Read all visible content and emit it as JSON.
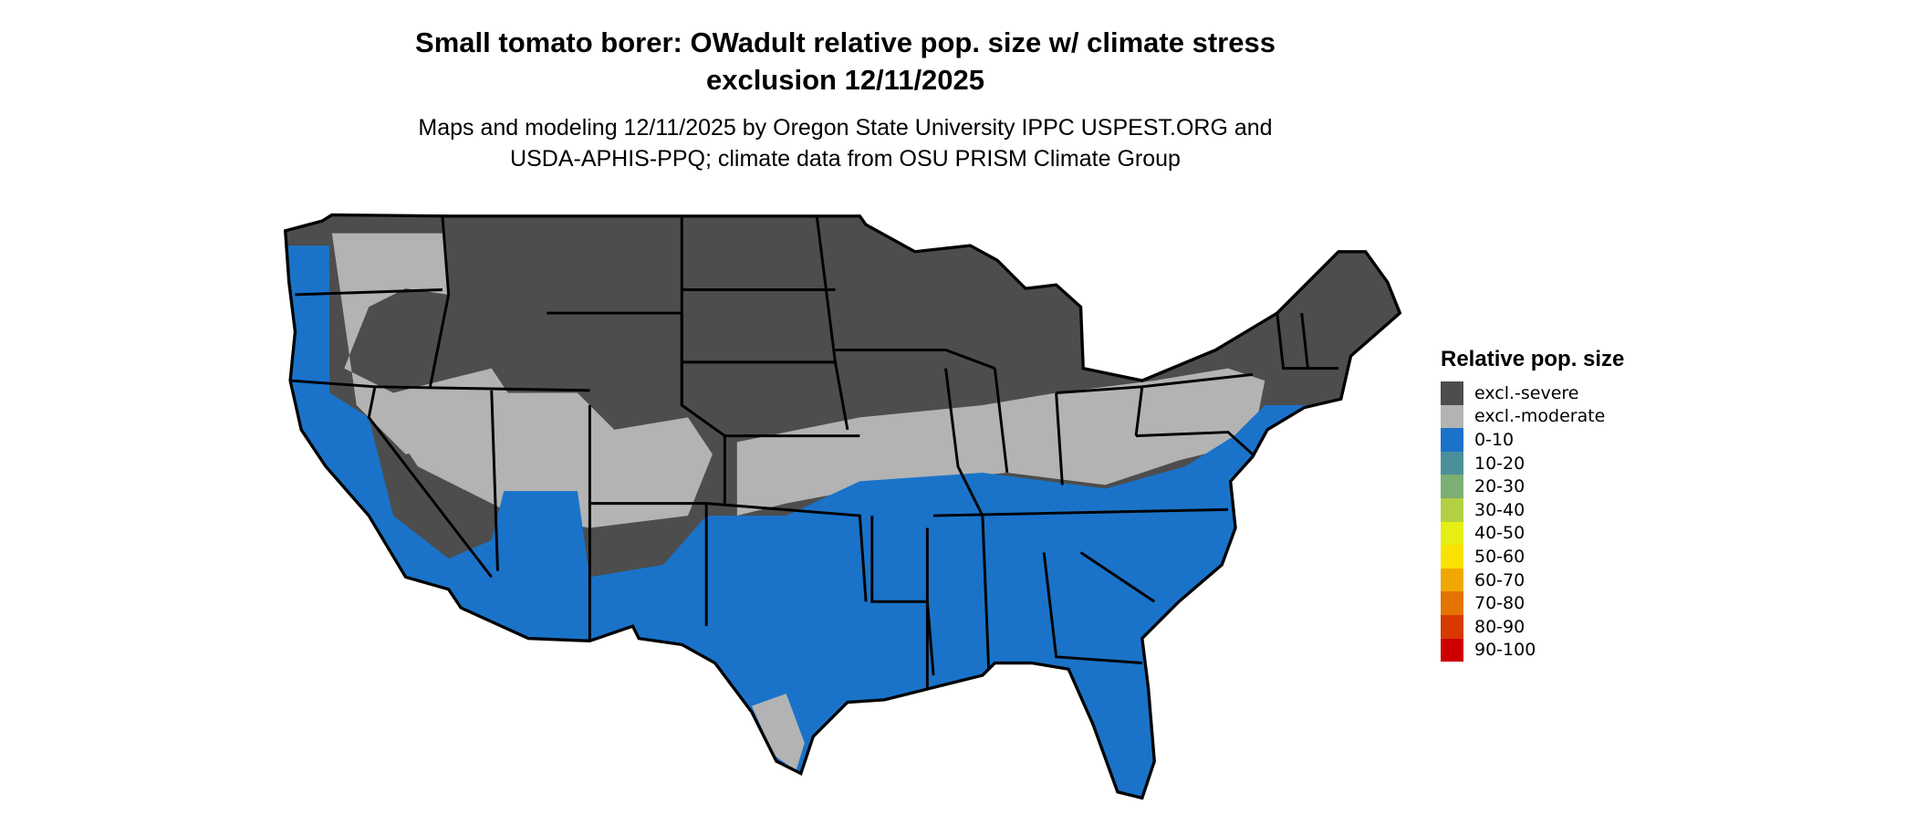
{
  "title_line1": "Small tomato borer: OWadult relative pop. size w/ climate stress",
  "title_line2": "exclusion 12/11/2025",
  "subtitle_line1": "Maps and modeling 12/11/2025 by Oregon State University IPPC USPEST.ORG and",
  "subtitle_line2": "USDA-APHIS-PPQ; climate data from OSU PRISM Climate Group",
  "legend": {
    "title": "Relative pop. size",
    "items": [
      {
        "label": "excl.-severe",
        "color": "#4d4d4d"
      },
      {
        "label": "excl.-moderate",
        "color": "#b3b3b3"
      },
      {
        "label": "0-10",
        "color": "#1a73c9"
      },
      {
        "label": "10-20",
        "color": "#4a909b"
      },
      {
        "label": "20-30",
        "color": "#7daf72"
      },
      {
        "label": "30-40",
        "color": "#b3d042"
      },
      {
        "label": "40-50",
        "color": "#e5ef14"
      },
      {
        "label": "50-60",
        "color": "#f9e100"
      },
      {
        "label": "60-70",
        "color": "#f0a800"
      },
      {
        "label": "70-80",
        "color": "#e47300"
      },
      {
        "label": "80-90",
        "color": "#d93800"
      },
      {
        "label": "90-100",
        "color": "#cc0000"
      }
    ]
  },
  "map": {
    "region": "Contiguous United States",
    "dominant_classes": [
      "excl.-severe",
      "excl.-moderate",
      "0-10"
    ]
  }
}
